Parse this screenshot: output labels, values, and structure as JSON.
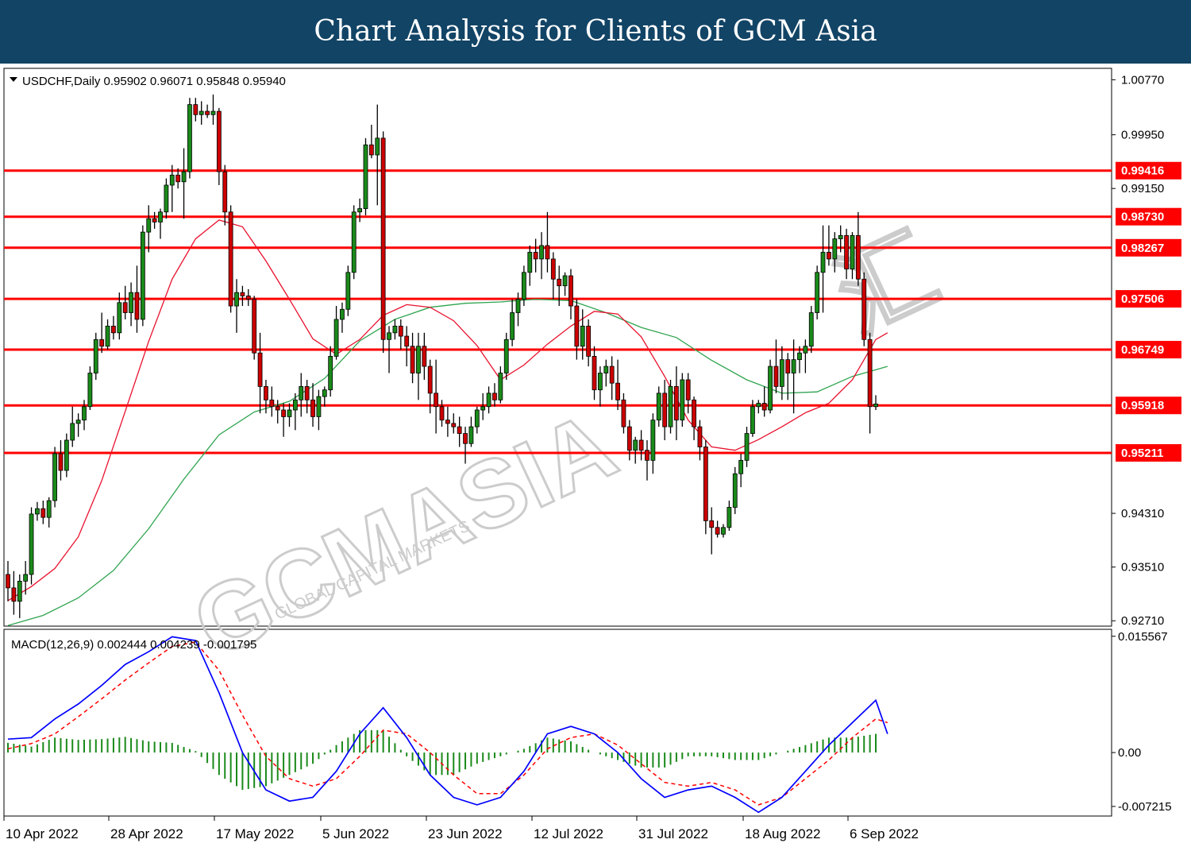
{
  "header": {
    "title": "Chart Analysis for Clients of GCM Asia"
  },
  "watermark": {
    "text": "GCMASIA",
    "subtext": "GLOBAL CAPITAL MARKETS",
    "cn_text": "汇"
  },
  "colors": {
    "banner": "#124466",
    "bull": "#1a8a1a",
    "bear": "#cc0000",
    "wick": "#000000",
    "level_line": "#ff0000",
    "level_label_bg": "#ff0000",
    "ma_fast": "#e8102c",
    "ma_slow": "#2fa44f",
    "macd_line": "#0000ff",
    "signal_line": "#ff0000",
    "histogram": "#1a8a1a"
  },
  "chart_data": [
    {
      "type": "candlestick",
      "symbol": "USDCHF",
      "timeframe": "Daily",
      "info_label": "USDCHF,Daily  0.95902 0.96071 0.95848 0.95940",
      "last_bar": {
        "open": 0.95902,
        "high": 0.96071,
        "low": 0.95848,
        "close": 0.9594
      },
      "ylim": [
        0.9263,
        1.0094
      ],
      "y_ticks": [
        "1.00770",
        "0.99950",
        "0.99150",
        "0.94310",
        "0.93510",
        "0.92710"
      ],
      "x_ticks": [
        "10 Apr 2022",
        "28 Apr 2022",
        "17 May 2022",
        "5 Jun 2022",
        "23 Jun 2022",
        "12 Jul 2022",
        "31 Jul 2022",
        "18 Aug 2022",
        "6 Sep 2022"
      ],
      "levels": [
        "0.99416",
        "0.98730",
        "0.98267",
        "0.97506",
        "0.96749",
        "0.95918",
        "0.95211"
      ],
      "ohlc": [
        [
          0.934,
          0.936,
          0.93,
          0.932
        ],
        [
          0.932,
          0.9345,
          0.928,
          0.93
        ],
        [
          0.93,
          0.934,
          0.9275,
          0.933
        ],
        [
          0.933,
          0.936,
          0.931,
          0.934
        ],
        [
          0.934,
          0.944,
          0.9325,
          0.943
        ],
        [
          0.943,
          0.9448,
          0.942,
          0.9438
        ],
        [
          0.9438,
          0.945,
          0.9415,
          0.9425
        ],
        [
          0.9425,
          0.9455,
          0.941,
          0.945
        ],
        [
          0.945,
          0.953,
          0.944,
          0.952
        ],
        [
          0.952,
          0.954,
          0.948,
          0.9495
        ],
        [
          0.9495,
          0.955,
          0.9485,
          0.954
        ],
        [
          0.954,
          0.959,
          0.953,
          0.9565
        ],
        [
          0.9565,
          0.958,
          0.9545,
          0.957
        ],
        [
          0.957,
          0.96,
          0.9555,
          0.959
        ],
        [
          0.959,
          0.965,
          0.9585,
          0.964
        ],
        [
          0.964,
          0.97,
          0.963,
          0.969
        ],
        [
          0.969,
          0.973,
          0.967,
          0.968
        ],
        [
          0.968,
          0.972,
          0.9675,
          0.971
        ],
        [
          0.971,
          0.9725,
          0.969,
          0.97
        ],
        [
          0.97,
          0.976,
          0.969,
          0.9745
        ],
        [
          0.9745,
          0.977,
          0.972,
          0.973
        ],
        [
          0.973,
          0.9775,
          0.971,
          0.976
        ],
        [
          0.976,
          0.98,
          0.97,
          0.972
        ],
        [
          0.972,
          0.986,
          0.971,
          0.985
        ],
        [
          0.985,
          0.989,
          0.982,
          0.987
        ],
        [
          0.987,
          0.988,
          0.9855,
          0.9865
        ],
        [
          0.9865,
          0.9885,
          0.984,
          0.988
        ],
        [
          0.988,
          0.993,
          0.987,
          0.992
        ],
        [
          0.992,
          0.995,
          0.988,
          0.9935
        ],
        [
          0.9935,
          0.9945,
          0.9915,
          0.9925
        ],
        [
          0.9925,
          0.9975,
          0.987,
          0.994
        ],
        [
          0.994,
          1.005,
          0.993,
          1.004
        ],
        [
          1.004,
          1.005,
          1.0015,
          1.0025
        ],
        [
          1.0025,
          1.0045,
          1.001,
          1.003
        ],
        [
          1.003,
          1.004,
          1.002,
          1.0025
        ],
        [
          1.0025,
          1.0055,
          1.001,
          1.003
        ],
        [
          1.003,
          1.0035,
          0.992,
          0.994
        ],
        [
          0.994,
          0.995,
          0.986,
          0.988
        ],
        [
          0.988,
          0.989,
          0.973,
          0.974
        ],
        [
          0.974,
          0.978,
          0.97,
          0.976
        ],
        [
          0.976,
          0.977,
          0.974,
          0.9755
        ],
        [
          0.9755,
          0.9765,
          0.974,
          0.975
        ],
        [
          0.975,
          0.9755,
          0.966,
          0.967
        ],
        [
          0.967,
          0.97,
          0.958,
          0.962
        ],
        [
          0.962,
          0.963,
          0.958,
          0.96
        ],
        [
          0.96,
          0.962,
          0.9575,
          0.959
        ],
        [
          0.959,
          0.96,
          0.9565,
          0.9585
        ],
        [
          0.9585,
          0.9595,
          0.9545,
          0.9575
        ],
        [
          0.9575,
          0.9595,
          0.956,
          0.9585
        ],
        [
          0.9585,
          0.961,
          0.9555,
          0.96
        ],
        [
          0.96,
          0.964,
          0.9575,
          0.962
        ],
        [
          0.962,
          0.963,
          0.958,
          0.96
        ],
        [
          0.96,
          0.9625,
          0.956,
          0.9575
        ],
        [
          0.9575,
          0.9615,
          0.9555,
          0.9605
        ],
        [
          0.9605,
          0.962,
          0.959,
          0.9615
        ],
        [
          0.9615,
          0.968,
          0.9605,
          0.9665
        ],
        [
          0.9665,
          0.974,
          0.966,
          0.972
        ],
        [
          0.972,
          0.9745,
          0.97,
          0.9735
        ],
        [
          0.9735,
          0.98,
          0.9725,
          0.979
        ],
        [
          0.979,
          0.989,
          0.978,
          0.988
        ],
        [
          0.988,
          0.99,
          0.9865,
          0.9885
        ],
        [
          0.9885,
          0.999,
          0.9875,
          0.998
        ],
        [
          0.998,
          1.001,
          0.996,
          0.9965
        ],
        [
          0.9965,
          1.004,
          0.989,
          0.999
        ],
        [
          0.999,
          1.0,
          0.967,
          0.969
        ],
        [
          0.969,
          0.971,
          0.964,
          0.97
        ],
        [
          0.97,
          0.972,
          0.969,
          0.971
        ],
        [
          0.971,
          0.972,
          0.9675,
          0.9695
        ],
        [
          0.9695,
          0.971,
          0.965,
          0.968
        ],
        [
          0.968,
          0.97,
          0.9625,
          0.964
        ],
        [
          0.964,
          0.97,
          0.96,
          0.968
        ],
        [
          0.968,
          0.97,
          0.963,
          0.965
        ],
        [
          0.965,
          0.966,
          0.958,
          0.961
        ],
        [
          0.961,
          0.966,
          0.955,
          0.959
        ],
        [
          0.959,
          0.96,
          0.956,
          0.957
        ],
        [
          0.957,
          0.959,
          0.9545,
          0.9565
        ],
        [
          0.9565,
          0.958,
          0.955,
          0.956
        ],
        [
          0.956,
          0.9575,
          0.953,
          0.955
        ],
        [
          0.955,
          0.956,
          0.9505,
          0.9535
        ],
        [
          0.9535,
          0.9575,
          0.953,
          0.956
        ],
        [
          0.956,
          0.959,
          0.955,
          0.9585
        ],
        [
          0.9585,
          0.961,
          0.957,
          0.959
        ],
        [
          0.959,
          0.962,
          0.958,
          0.961
        ],
        [
          0.961,
          0.9625,
          0.959,
          0.96
        ],
        [
          0.96,
          0.965,
          0.9595,
          0.964
        ],
        [
          0.964,
          0.97,
          0.963,
          0.969
        ],
        [
          0.969,
          0.975,
          0.968,
          0.973
        ],
        [
          0.973,
          0.976,
          0.971,
          0.975
        ],
        [
          0.975,
          0.98,
          0.974,
          0.979
        ],
        [
          0.979,
          0.983,
          0.977,
          0.982
        ],
        [
          0.982,
          0.984,
          0.979,
          0.981
        ],
        [
          0.981,
          0.985,
          0.978,
          0.983
        ],
        [
          0.983,
          0.988,
          0.979,
          0.981
        ],
        [
          0.981,
          0.982,
          0.975,
          0.978
        ],
        [
          0.978,
          0.98,
          0.974,
          0.977
        ],
        [
          0.977,
          0.979,
          0.9755,
          0.9785
        ],
        [
          0.9785,
          0.9795,
          0.972,
          0.974
        ],
        [
          0.974,
          0.975,
          0.966,
          0.968
        ],
        [
          0.968,
          0.9735,
          0.966,
          0.971
        ],
        [
          0.971,
          0.972,
          0.965,
          0.9665
        ],
        [
          0.9665,
          0.968,
          0.96,
          0.9615
        ],
        [
          0.9615,
          0.965,
          0.959,
          0.964
        ],
        [
          0.964,
          0.966,
          0.962,
          0.965
        ],
        [
          0.965,
          0.9665,
          0.96,
          0.9625
        ],
        [
          0.9625,
          0.966,
          0.9585,
          0.96
        ],
        [
          0.96,
          0.961,
          0.955,
          0.956
        ],
        [
          0.956,
          0.957,
          0.951,
          0.9525
        ],
        [
          0.9525,
          0.9545,
          0.9505,
          0.954
        ],
        [
          0.954,
          0.9555,
          0.951,
          0.9525
        ],
        [
          0.9525,
          0.954,
          0.948,
          0.951
        ],
        [
          0.951,
          0.958,
          0.949,
          0.957
        ],
        [
          0.957,
          0.962,
          0.956,
          0.961
        ],
        [
          0.961,
          0.963,
          0.954,
          0.956
        ],
        [
          0.956,
          0.963,
          0.955,
          0.962
        ],
        [
          0.962,
          0.965,
          0.954,
          0.957
        ],
        [
          0.957,
          0.964,
          0.956,
          0.963
        ],
        [
          0.963,
          0.964,
          0.958,
          0.96
        ],
        [
          0.96,
          0.9605,
          0.954,
          0.956
        ],
        [
          0.956,
          0.957,
          0.951,
          0.953
        ],
        [
          0.953,
          0.954,
          0.94,
          0.942
        ],
        [
          0.942,
          0.944,
          0.937,
          0.941
        ],
        [
          0.941,
          0.942,
          0.9395,
          0.94
        ],
        [
          0.94,
          0.9415,
          0.9395,
          0.941
        ],
        [
          0.941,
          0.945,
          0.9405,
          0.944
        ],
        [
          0.944,
          0.95,
          0.943,
          0.949
        ],
        [
          0.949,
          0.952,
          0.947,
          0.951
        ],
        [
          0.951,
          0.956,
          0.95,
          0.955
        ],
        [
          0.955,
          0.96,
          0.9545,
          0.959
        ],
        [
          0.959,
          0.96,
          0.958,
          0.9595
        ],
        [
          0.9595,
          0.962,
          0.9575,
          0.9585
        ],
        [
          0.9585,
          0.966,
          0.958,
          0.965
        ],
        [
          0.965,
          0.969,
          0.961,
          0.962
        ],
        [
          0.962,
          0.968,
          0.96,
          0.966
        ],
        [
          0.966,
          0.967,
          0.96,
          0.964
        ],
        [
          0.964,
          0.969,
          0.958,
          0.966
        ],
        [
          0.966,
          0.968,
          0.964,
          0.967
        ],
        [
          0.967,
          0.969,
          0.964,
          0.968
        ],
        [
          0.968,
          0.974,
          0.967,
          0.973
        ],
        [
          0.973,
          0.98,
          0.972,
          0.979
        ],
        [
          0.979,
          0.986,
          0.973,
          0.982
        ],
        [
          0.982,
          0.986,
          0.98,
          0.981
        ],
        [
          0.981,
          0.985,
          0.979,
          0.984
        ],
        [
          0.984,
          0.986,
          0.982,
          0.9845
        ],
        [
          0.9845,
          0.9855,
          0.978,
          0.9795
        ],
        [
          0.9795,
          0.985,
          0.978,
          0.9845
        ],
        [
          0.9845,
          0.988,
          0.977,
          0.978
        ],
        [
          0.978,
          0.979,
          0.968,
          0.969
        ],
        [
          0.969,
          0.97,
          0.955,
          0.959
        ],
        [
          0.959,
          0.9607,
          0.9585,
          0.9594
        ]
      ],
      "ma_fast": {
        "x": [
          0,
          4,
          8,
          12,
          16,
          20,
          24,
          28,
          32,
          36,
          40,
          44,
          48,
          52,
          56,
          60,
          64,
          68,
          72,
          76,
          80,
          84,
          88,
          92,
          96,
          100,
          104,
          108,
          112,
          116,
          120,
          124,
          128,
          132,
          136,
          140,
          144,
          148,
          150
        ],
        "y": [
          0.9301,
          0.9322,
          0.9349,
          0.9396,
          0.948,
          0.9583,
          0.9687,
          0.978,
          0.984,
          0.9868,
          0.9858,
          0.9807,
          0.975,
          0.9691,
          0.9668,
          0.969,
          0.9726,
          0.9742,
          0.9738,
          0.9718,
          0.9681,
          0.963,
          0.9652,
          0.9683,
          0.971,
          0.9732,
          0.9728,
          0.9694,
          0.9635,
          0.957,
          0.953,
          0.9525,
          0.9541,
          0.956,
          0.9581,
          0.9595,
          0.963,
          0.969,
          0.97
        ]
      },
      "ma_slow": {
        "x": [
          0,
          6,
          12,
          18,
          24,
          30,
          36,
          42,
          48,
          54,
          60,
          66,
          72,
          78,
          84,
          90,
          96,
          102,
          108,
          114,
          120,
          126,
          132,
          138,
          144,
          150
        ],
        "y": [
          0.9264,
          0.9279,
          0.9305,
          0.9346,
          0.9408,
          0.9482,
          0.9548,
          0.9582,
          0.9598,
          0.9632,
          0.9688,
          0.972,
          0.9738,
          0.9744,
          0.9746,
          0.975,
          0.9748,
          0.973,
          0.9708,
          0.9693,
          0.9659,
          0.963,
          0.961,
          0.9612,
          0.9635,
          0.965
        ]
      }
    },
    {
      "type": "macd",
      "info_label": "MACD(12,26,9) 0.002444 0.004239 -0.001795",
      "values": {
        "macd": 0.002444,
        "signal": 0.004239,
        "histogram": -0.001795
      },
      "ylim": [
        -0.0085,
        0.0165
      ],
      "y_ticks": [
        "0.015567",
        "0.00",
        "-0.007215"
      ],
      "macd_line": {
        "x": [
          0,
          4,
          8,
          12,
          16,
          20,
          24,
          28,
          32,
          36,
          40,
          44,
          48,
          52,
          56,
          60,
          64,
          68,
          72,
          76,
          80,
          84,
          88,
          92,
          96,
          100,
          104,
          108,
          112,
          116,
          120,
          124,
          128,
          132,
          136,
          140,
          144,
          148,
          150
        ],
        "y": [
          0.0018,
          0.002,
          0.0045,
          0.0065,
          0.009,
          0.0118,
          0.0135,
          0.0155,
          0.015,
          0.008,
          0.0,
          -0.005,
          -0.0065,
          -0.006,
          -0.0025,
          0.0025,
          0.006,
          0.002,
          -0.003,
          -0.006,
          -0.007,
          -0.006,
          -0.0025,
          0.0025,
          0.0035,
          0.0025,
          0.0,
          -0.0035,
          -0.006,
          -0.005,
          -0.0045,
          -0.006,
          -0.008,
          -0.006,
          -0.0025,
          0.001,
          0.004,
          0.007,
          0.0025
        ]
      },
      "signal_line": {
        "x": [
          0,
          4,
          8,
          12,
          16,
          20,
          24,
          28,
          32,
          36,
          40,
          44,
          48,
          52,
          56,
          60,
          64,
          68,
          72,
          76,
          80,
          84,
          88,
          92,
          96,
          100,
          104,
          108,
          112,
          116,
          120,
          124,
          128,
          132,
          136,
          140,
          144,
          148,
          150
        ],
        "y": [
          0.0005,
          0.0012,
          0.0025,
          0.0048,
          0.0072,
          0.0097,
          0.012,
          0.0142,
          0.0148,
          0.011,
          0.005,
          -0.0005,
          -0.0035,
          -0.0045,
          -0.0035,
          -0.0005,
          0.003,
          0.0025,
          0.0,
          -0.003,
          -0.0055,
          -0.0055,
          -0.003,
          0.0005,
          0.002,
          0.0025,
          0.001,
          -0.0015,
          -0.004,
          -0.0045,
          -0.004,
          -0.005,
          -0.007,
          -0.006,
          -0.0035,
          -0.001,
          0.002,
          0.0045,
          0.004
        ]
      }
    }
  ]
}
